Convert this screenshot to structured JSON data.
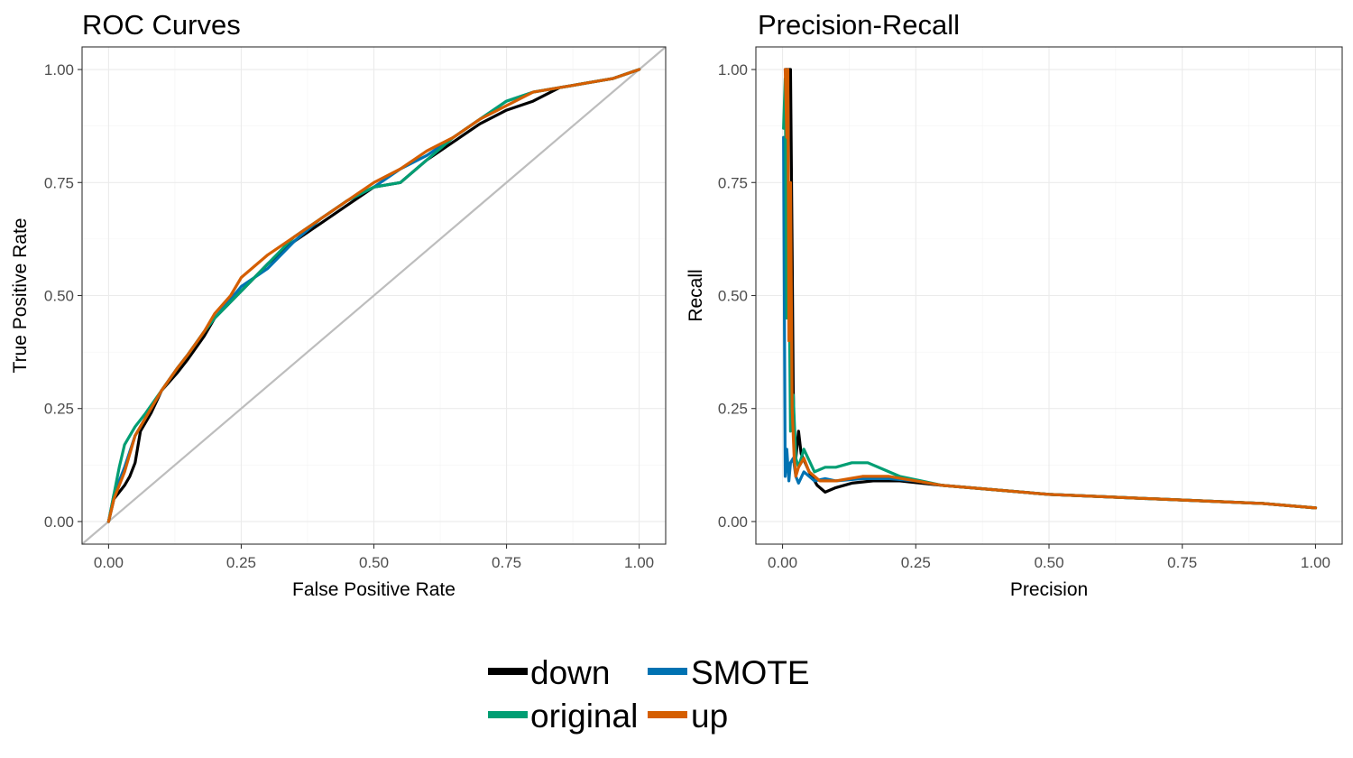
{
  "colors": {
    "down": "#000000",
    "SMOTE": "#0072B2",
    "original": "#009E73",
    "up": "#D55E00",
    "diagonal": "#bdbdbd"
  },
  "legend": {
    "position": "bottom",
    "items": [
      {
        "name": "down",
        "color": "#000000"
      },
      {
        "name": "SMOTE",
        "color": "#0072B2"
      },
      {
        "name": "original",
        "color": "#009E73"
      },
      {
        "name": "up",
        "color": "#D55E00"
      }
    ]
  },
  "chart_data": [
    {
      "type": "line",
      "title": "ROC Curves",
      "xlabel": "False Positive Rate",
      "ylabel": "True Positive Rate",
      "xlim": [
        -0.05,
        1.05
      ],
      "ylim": [
        -0.05,
        1.05
      ],
      "xticks": [
        0,
        0.25,
        0.5,
        0.75,
        1
      ],
      "yticks": [
        0,
        0.25,
        0.5,
        0.75,
        1
      ],
      "xtick_labels": [
        "0.00",
        "0.25",
        "0.50",
        "0.75",
        "1.00"
      ],
      "ytick_labels": [
        "0.00",
        "0.25",
        "0.50",
        "0.75",
        "1.00"
      ],
      "grid": true,
      "reference_line": {
        "x": [
          -0.05,
          1.05
        ],
        "y": [
          -0.05,
          1.05
        ]
      },
      "series": [
        {
          "name": "down",
          "x": [
            0,
            0.01,
            0.03,
            0.04,
            0.05,
            0.06,
            0.08,
            0.1,
            0.13,
            0.15,
            0.18,
            0.2,
            0.25,
            0.3,
            0.35,
            0.4,
            0.45,
            0.5,
            0.55,
            0.6,
            0.65,
            0.7,
            0.75,
            0.8,
            0.85,
            0.9,
            0.95,
            1
          ],
          "y": [
            0,
            0.05,
            0.08,
            0.1,
            0.13,
            0.2,
            0.24,
            0.29,
            0.33,
            0.36,
            0.41,
            0.45,
            0.51,
            0.57,
            0.62,
            0.66,
            0.7,
            0.74,
            0.75,
            0.8,
            0.84,
            0.88,
            0.91,
            0.93,
            0.96,
            0.97,
            0.98,
            1
          ]
        },
        {
          "name": "SMOTE",
          "x": [
            0,
            0.01,
            0.03,
            0.05,
            0.07,
            0.1,
            0.13,
            0.15,
            0.18,
            0.2,
            0.25,
            0.3,
            0.35,
            0.4,
            0.45,
            0.5,
            0.55,
            0.6,
            0.65,
            0.7,
            0.75,
            0.8,
            0.85,
            0.9,
            0.95,
            1
          ],
          "y": [
            0,
            0.06,
            0.12,
            0.19,
            0.23,
            0.29,
            0.34,
            0.37,
            0.42,
            0.45,
            0.52,
            0.56,
            0.62,
            0.67,
            0.71,
            0.74,
            0.78,
            0.81,
            0.85,
            0.89,
            0.93,
            0.95,
            0.96,
            0.97,
            0.98,
            1
          ]
        },
        {
          "name": "original",
          "x": [
            0,
            0.01,
            0.02,
            0.03,
            0.05,
            0.07,
            0.1,
            0.13,
            0.15,
            0.18,
            0.2,
            0.25,
            0.3,
            0.35,
            0.4,
            0.45,
            0.5,
            0.55,
            0.6,
            0.65,
            0.7,
            0.75,
            0.8,
            0.85,
            0.9,
            0.95,
            1
          ],
          "y": [
            0,
            0.06,
            0.12,
            0.17,
            0.21,
            0.24,
            0.29,
            0.34,
            0.37,
            0.42,
            0.45,
            0.51,
            0.57,
            0.63,
            0.67,
            0.71,
            0.74,
            0.75,
            0.8,
            0.85,
            0.89,
            0.93,
            0.95,
            0.96,
            0.97,
            0.98,
            1
          ]
        },
        {
          "name": "up",
          "x": [
            0,
            0.01,
            0.03,
            0.05,
            0.07,
            0.1,
            0.13,
            0.15,
            0.18,
            0.2,
            0.23,
            0.25,
            0.3,
            0.35,
            0.4,
            0.45,
            0.5,
            0.55,
            0.6,
            0.65,
            0.7,
            0.75,
            0.8,
            0.85,
            0.9,
            0.95,
            1
          ],
          "y": [
            0,
            0.05,
            0.11,
            0.19,
            0.23,
            0.29,
            0.34,
            0.37,
            0.42,
            0.46,
            0.5,
            0.54,
            0.59,
            0.63,
            0.67,
            0.71,
            0.75,
            0.78,
            0.82,
            0.85,
            0.89,
            0.92,
            0.95,
            0.96,
            0.97,
            0.98,
            1
          ]
        }
      ]
    },
    {
      "type": "line",
      "title": "Precision-Recall",
      "xlabel": "Precision",
      "ylabel": "Recall",
      "xlim": [
        -0.05,
        1.05
      ],
      "ylim": [
        -0.05,
        1.05
      ],
      "xticks": [
        0,
        0.25,
        0.5,
        0.75,
        1
      ],
      "yticks": [
        0,
        0.25,
        0.5,
        0.75,
        1
      ],
      "xtick_labels": [
        "0.00",
        "0.25",
        "0.50",
        "0.75",
        "1.00"
      ],
      "ytick_labels": [
        "0.00",
        "0.25",
        "0.50",
        "0.75",
        "1.00"
      ],
      "grid": true,
      "series": [
        {
          "name": "down",
          "x": [
            0.005,
            0.01,
            0.015,
            0.018,
            0.02,
            0.022,
            0.025,
            0.03,
            0.035,
            0.05,
            0.065,
            0.08,
            0.1,
            0.13,
            0.17,
            0.22,
            0.3,
            0.4,
            0.5,
            0.6,
            0.7,
            0.8,
            0.9,
            1
          ],
          "y": [
            1,
            1,
            1,
            0.6,
            0.3,
            0.17,
            0.14,
            0.2,
            0.15,
            0.11,
            0.08,
            0.065,
            0.075,
            0.085,
            0.09,
            0.09,
            0.08,
            0.07,
            0.06,
            0.055,
            0.05,
            0.045,
            0.04,
            0.03
          ]
        },
        {
          "name": "SMOTE",
          "x": [
            0.002,
            0.005,
            0.008,
            0.012,
            0.015,
            0.02,
            0.025,
            0.03,
            0.04,
            0.06,
            0.08,
            0.1,
            0.15,
            0.2,
            0.25,
            0.3,
            0.4,
            0.5,
            0.6,
            0.7,
            0.8,
            0.9,
            1
          ],
          "y": [
            0.85,
            0.1,
            0.16,
            0.09,
            0.13,
            0.14,
            0.1,
            0.085,
            0.11,
            0.09,
            0.095,
            0.09,
            0.095,
            0.095,
            0.09,
            0.08,
            0.07,
            0.06,
            0.055,
            0.05,
            0.045,
            0.04,
            0.03
          ]
        },
        {
          "name": "original",
          "x": [
            0.002,
            0.005,
            0.008,
            0.012,
            0.015,
            0.02,
            0.025,
            0.03,
            0.04,
            0.06,
            0.08,
            0.1,
            0.13,
            0.16,
            0.2,
            0.22,
            0.3,
            0.4,
            0.5,
            0.6,
            0.7,
            0.8,
            0.9,
            1
          ],
          "y": [
            0.87,
            0.98,
            0.45,
            0.6,
            0.2,
            0.28,
            0.14,
            0.12,
            0.16,
            0.11,
            0.12,
            0.12,
            0.13,
            0.13,
            0.11,
            0.1,
            0.08,
            0.07,
            0.06,
            0.055,
            0.05,
            0.045,
            0.04,
            0.03
          ]
        },
        {
          "name": "up",
          "x": [
            0.005,
            0.008,
            0.01,
            0.012,
            0.015,
            0.018,
            0.022,
            0.025,
            0.03,
            0.04,
            0.05,
            0.07,
            0.1,
            0.15,
            0.2,
            0.25,
            0.3,
            0.4,
            0.5,
            0.6,
            0.7,
            0.8,
            0.9,
            1
          ],
          "y": [
            1,
            0.85,
            1,
            0.4,
            0.75,
            0.25,
            0.14,
            0.1,
            0.12,
            0.14,
            0.11,
            0.09,
            0.09,
            0.1,
            0.1,
            0.09,
            0.08,
            0.07,
            0.06,
            0.055,
            0.05,
            0.045,
            0.04,
            0.03
          ]
        }
      ]
    }
  ]
}
